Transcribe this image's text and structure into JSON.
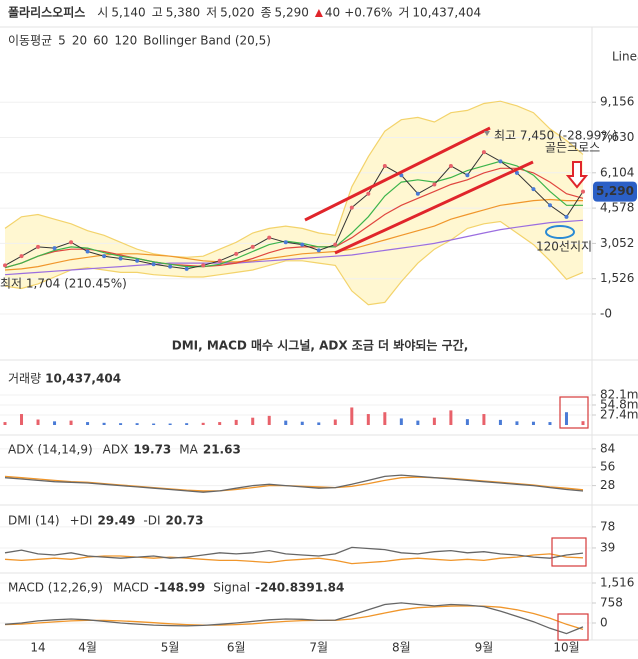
{
  "header": {
    "name": "폴라리스오피스",
    "quotes": [
      {
        "label": "시",
        "value": "5,140"
      },
      {
        "label": "고",
        "value": "5,380"
      },
      {
        "label": "저",
        "value": "5,020"
      },
      {
        "label": "종",
        "value": "5,290"
      }
    ],
    "change": "40",
    "change_pct": "+0.76%",
    "volume": {
      "label": "거",
      "value": "10,437,404"
    }
  },
  "chart_data": [
    {
      "type": "line",
      "legend_title": "이동평균",
      "scale_label": "Linea",
      "values": [
        2100,
        2500,
        2900,
        2850,
        3100,
        2700,
        2500,
        2400,
        2300,
        2150,
        2050,
        1950,
        2100,
        2300,
        2600,
        2900,
        3300,
        3100,
        3000,
        2750,
        3000,
        4600,
        5200,
        6400,
        6000,
        5200,
        5600,
        6400,
        6000,
        7000,
        6600,
        6100,
        5400,
        4700,
        4200,
        5290
      ],
      "value_labels": [
        null,
        null,
        null,
        null,
        null,
        null,
        null,
        null,
        null,
        null,
        null,
        null,
        null,
        null,
        null,
        null,
        null,
        null,
        null,
        null,
        null,
        null,
        null,
        null,
        null,
        null,
        null,
        null,
        null,
        null,
        null,
        null,
        null,
        null,
        null,
        "5,290"
      ],
      "color": "#333333",
      "label_color": "#2b5fc6",
      "series": [
        {
          "name": "5",
          "color": "#3cb44b",
          "values": [
            2000,
            2200,
            2500,
            2750,
            2900,
            2850,
            2650,
            2500,
            2400,
            2250,
            2150,
            2050,
            2050,
            2150,
            2400,
            2700,
            3000,
            3150,
            3050,
            2900,
            2900,
            3500,
            4200,
            5100,
            5700,
            5800,
            5700,
            5900,
            6200,
            6400,
            6600,
            6400,
            6000,
            5300,
            4700,
            4700
          ]
        },
        {
          "name": "20",
          "color": "#e0463f",
          "values": [
            2000,
            2200,
            2500,
            2700,
            2800,
            2800,
            2700,
            2550,
            2400,
            2250,
            2150,
            2100,
            2050,
            2100,
            2200,
            2400,
            2650,
            2850,
            2900,
            2900,
            2900,
            3300,
            3800,
            4300,
            4700,
            5000,
            5300,
            5600,
            5800,
            6100,
            6300,
            6300,
            6100,
            5700,
            5200,
            5000
          ]
        },
        {
          "name": "60",
          "color": "#f0962b",
          "values": [
            1900,
            1950,
            2050,
            2200,
            2350,
            2450,
            2550,
            2600,
            2600,
            2550,
            2500,
            2400,
            2300,
            2250,
            2250,
            2300,
            2400,
            2500,
            2600,
            2650,
            2700,
            2800,
            3000,
            3200,
            3400,
            3600,
            3800,
            4100,
            4300,
            4500,
            4700,
            4800,
            4900,
            4950,
            4900,
            4900
          ]
        },
        {
          "name": "120",
          "color": "#9b6ee0",
          "values": [
            1700,
            1750,
            1800,
            1850,
            1900,
            1950,
            2000,
            2050,
            2100,
            2150,
            2200,
            2200,
            2200,
            2200,
            2200,
            2250,
            2300,
            2350,
            2400,
            2450,
            2500,
            2550,
            2650,
            2750,
            2850,
            2950,
            3050,
            3200,
            3350,
            3500,
            3650,
            3750,
            3850,
            3950,
            4000,
            4050
          ]
        }
      ],
      "bollinger": {
        "label": "Bollinger Band (20,5)",
        "color": "#f3d36b",
        "fill": "#fff7d1",
        "upper": [
          3700,
          4200,
          4300,
          4100,
          3900,
          3600,
          3400,
          3100,
          2800,
          2600,
          2500,
          2450,
          2500,
          2800,
          3100,
          3500,
          3700,
          3800,
          3700,
          3500,
          3400,
          5500,
          6800,
          7900,
          8400,
          8500,
          8300,
          8700,
          8800,
          9100,
          9200,
          9000,
          8700,
          8000,
          7500,
          6900
        ],
        "lower": [
          1200,
          1100,
          1300,
          1600,
          1900,
          2000,
          1900,
          1800,
          1800,
          1700,
          1650,
          1600,
          1600,
          1700,
          1800,
          1900,
          2100,
          2300,
          2300,
          2200,
          2100,
          1000,
          400,
          500,
          1400,
          2200,
          2800,
          3200,
          3700,
          3900,
          4000,
          3500,
          3000,
          2300,
          1500,
          1800
        ]
      },
      "ylim": [
        -692,
        10980
      ],
      "yticks": [
        {
          "value": 9156,
          "label": "9,156"
        },
        {
          "value": 7630,
          "label": "7,630"
        },
        {
          "value": 6104,
          "label": "6,104"
        },
        {
          "value": 4578,
          "label": "4,578"
        },
        {
          "value": 3052,
          "label": "3,052"
        },
        {
          "value": 1526,
          "label": "1,526"
        },
        {
          "value": 0,
          "label": "-0"
        }
      ],
      "annotations": [
        "최고 7,450 (-28.99%)",
        "최저 1,704 (210.45%)",
        "골든크로스",
        "120선지지",
        "DMI, MACD 매수 시그널, ADX 조금 더 봐야되는 구간,"
      ]
    },
    {
      "type": "bar",
      "title": "거래량",
      "last_label": "10,437,404",
      "up_color": "#e8616a",
      "down_color": "#4a7bd6",
      "values": [
        8000000,
        30000000,
        15000000,
        10000000,
        12000000,
        8000000,
        6000000,
        5000000,
        5000000,
        4000000,
        4000000,
        5000000,
        6000000,
        8000000,
        14000000,
        20000000,
        25000000,
        12000000,
        9000000,
        7000000,
        15000000,
        48000000,
        30000000,
        35000000,
        18000000,
        12000000,
        20000000,
        40000000,
        16000000,
        30000000,
        14000000,
        10000000,
        9000000,
        8000000,
        35000000,
        10437404
      ],
      "ylim": [
        0,
        164200000
      ],
      "yticks": [
        {
          "value": 82100000,
          "label": "82.1m"
        },
        {
          "value": 54800000,
          "label": "54.8m"
        },
        {
          "value": 27400000,
          "label": "27.4m"
        }
      ]
    },
    {
      "type": "line",
      "title": "ADX (14,14,9)",
      "series": [
        {
          "name": "ADX",
          "color": "#666666",
          "last_label": "19.73",
          "values": [
            40,
            38,
            36,
            34,
            33,
            32,
            30,
            28,
            26,
            24,
            22,
            20,
            18,
            20,
            24,
            28,
            30,
            28,
            26,
            24,
            25,
            30,
            36,
            42,
            44,
            42,
            40,
            38,
            36,
            34,
            32,
            30,
            28,
            25,
            22,
            19.73
          ]
        },
        {
          "name": "MA",
          "color": "#f0962b",
          "last_label": "21.63",
          "values": [
            42,
            40,
            38,
            36,
            34,
            33,
            31,
            29,
            27,
            25,
            23,
            21,
            20,
            20,
            22,
            25,
            28,
            28,
            27,
            26,
            25,
            27,
            31,
            36,
            40,
            41,
            40,
            39,
            37,
            35,
            33,
            31,
            29,
            26,
            24,
            21.63
          ]
        }
      ],
      "ylim": [
        0,
        102
      ],
      "yticks": [
        84,
        56,
        28
      ]
    },
    {
      "type": "line",
      "title": "DMI (14)",
      "series": [
        {
          "name": "+DI",
          "color": "#666666",
          "last_label": "29.49",
          "values": [
            30,
            35,
            28,
            26,
            30,
            24,
            22,
            20,
            22,
            24,
            20,
            22,
            26,
            30,
            28,
            30,
            34,
            28,
            26,
            24,
            28,
            40,
            38,
            36,
            30,
            28,
            32,
            34,
            30,
            32,
            28,
            26,
            22,
            20,
            26,
            29.49
          ]
        },
        {
          "name": "-DI",
          "color": "#f0962b",
          "last_label": "20.73",
          "values": [
            18,
            16,
            18,
            20,
            18,
            22,
            24,
            24,
            22,
            20,
            22,
            20,
            18,
            16,
            16,
            14,
            12,
            16,
            18,
            20,
            16,
            10,
            12,
            14,
            18,
            20,
            18,
            16,
            18,
            16,
            20,
            22,
            26,
            28,
            22,
            20.73
          ]
        }
      ],
      "ylim": [
        0,
        113
      ],
      "yticks": [
        78,
        39
      ]
    },
    {
      "type": "line",
      "title": "MACD (12,26,9)",
      "oscillator_label": "91.84",
      "series": [
        {
          "name": "MACD",
          "color": "#666666",
          "last_label": "-148.99",
          "values": [
            -50,
            0,
            80,
            120,
            150,
            120,
            60,
            0,
            -40,
            -80,
            -100,
            -110,
            -90,
            -50,
            0,
            60,
            120,
            150,
            140,
            100,
            110,
            300,
            500,
            700,
            760,
            700,
            650,
            700,
            680,
            620,
            450,
            250,
            50,
            -200,
            -400,
            -148.99
          ]
        },
        {
          "name": "Signal",
          "color": "#f0962b",
          "last_label": "-240.83",
          "values": [
            -60,
            -40,
            0,
            40,
            80,
            100,
            100,
            80,
            50,
            10,
            -30,
            -60,
            -80,
            -80,
            -60,
            -30,
            20,
            60,
            90,
            100,
            100,
            150,
            250,
            380,
            500,
            580,
            610,
            640,
            650,
            640,
            600,
            500,
            360,
            180,
            -50,
            -240.83
          ]
        }
      ],
      "ylim": [
        -644,
        1819
      ],
      "yticks": [
        {
          "value": 1516,
          "label": "1,516"
        },
        {
          "value": 758,
          "label": "758"
        },
        0
      ],
      "categories": [
        null,
        null,
        "14",
        null,
        null,
        "4월",
        null,
        null,
        null,
        null,
        "5월",
        null,
        null,
        null,
        "6월",
        null,
        null,
        null,
        null,
        "7월",
        null,
        null,
        null,
        null,
        "8월",
        null,
        null,
        null,
        null,
        "9월",
        null,
        null,
        null,
        null,
        "10월",
        null
      ]
    }
  ]
}
